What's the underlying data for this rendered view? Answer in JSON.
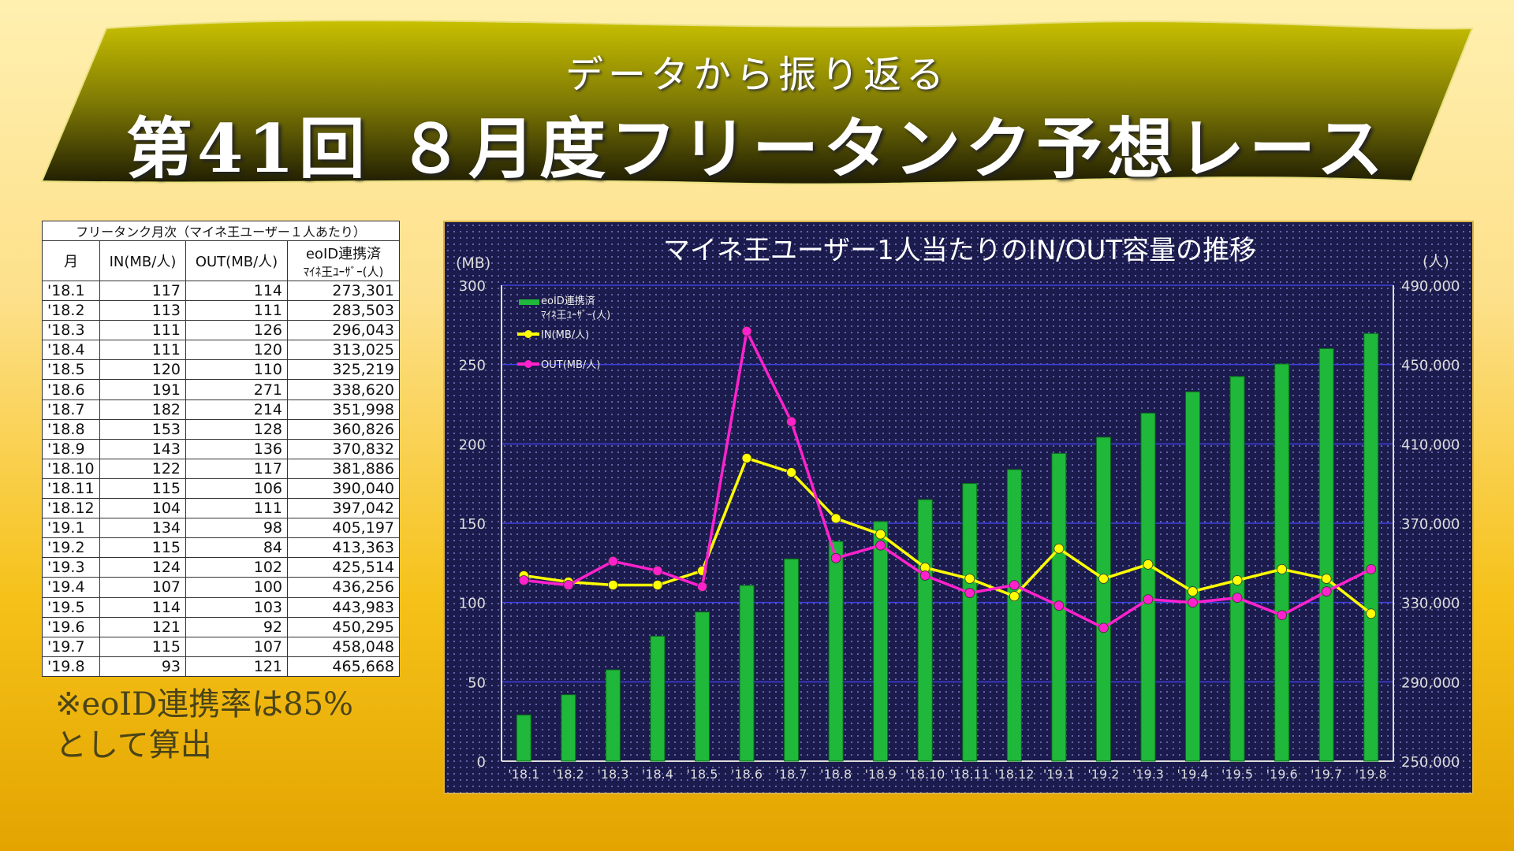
{
  "banner": {
    "subtitle": "データから振り返る",
    "title": "第41回 ８月度フリータンク予想レース"
  },
  "table": {
    "caption": "フリータンク月次（マイネ王ユーザー１人あたり）",
    "headers": [
      "月",
      "IN(MB/人)",
      "OUT(MB/人)",
      "eoID連携済",
      "ﾏｲﾈ王ﾕｰｻﾞｰ(人)"
    ],
    "rows": [
      [
        "'18.1",
        "117",
        "114",
        "273,301"
      ],
      [
        "'18.2",
        "113",
        "111",
        "283,503"
      ],
      [
        "'18.3",
        "111",
        "126",
        "296,043"
      ],
      [
        "'18.4",
        "111",
        "120",
        "313,025"
      ],
      [
        "'18.5",
        "120",
        "110",
        "325,219"
      ],
      [
        "'18.6",
        "191",
        "271",
        "338,620"
      ],
      [
        "'18.7",
        "182",
        "214",
        "351,998"
      ],
      [
        "'18.8",
        "153",
        "128",
        "360,826"
      ],
      [
        "'18.9",
        "143",
        "136",
        "370,832"
      ],
      [
        "'18.10",
        "122",
        "117",
        "381,886"
      ],
      [
        "'18.11",
        "115",
        "106",
        "390,040"
      ],
      [
        "'18.12",
        "104",
        "111",
        "397,042"
      ],
      [
        "'19.1",
        "134",
        "98",
        "405,197"
      ],
      [
        "'19.2",
        "115",
        "84",
        "413,363"
      ],
      [
        "'19.3",
        "124",
        "102",
        "425,514"
      ],
      [
        "'19.4",
        "107",
        "100",
        "436,256"
      ],
      [
        "'19.5",
        "114",
        "103",
        "443,983"
      ],
      [
        "'19.6",
        "121",
        "92",
        "450,295"
      ],
      [
        "'19.7",
        "115",
        "107",
        "458,048"
      ],
      [
        "'19.8",
        "93",
        "121",
        "465,668"
      ]
    ]
  },
  "note": {
    "line1": "※eoID連携率は85%",
    "line2": "として算出"
  },
  "chart_data": {
    "type": "bar+line",
    "title": "マイネ王ユーザー1人当たりのIN/OUT容量の推移",
    "ylabel_left": "(MB)",
    "ylabel_right": "(人)",
    "ylim_left": [
      0,
      300
    ],
    "yticks_left": [
      "0",
      "50",
      "100",
      "150",
      "200",
      "250",
      "300"
    ],
    "ylim_right": [
      250000,
      490000
    ],
    "yticks_right": [
      "250,000",
      "290,000",
      "330,000",
      "370,000",
      "410,000",
      "450,000",
      "490,000"
    ],
    "categories": [
      "'18.1",
      "'18.2",
      "'18.3",
      "'18.4",
      "'18.5",
      "'18.6",
      "'18.7",
      "'18.8",
      "'18.9",
      "'18.10",
      "'18.11",
      "'18.12",
      "'19.1",
      "'19.2",
      "'19.3",
      "'19.4",
      "'19.5",
      "'19.6",
      "'19.7",
      "'19.8"
    ],
    "legend": [
      "eoID連携済",
      "ﾏｲﾈ王ﾕｰｻﾞｰ(人)",
      "IN(MB/人)",
      "OUT(MB/人)"
    ],
    "series": [
      {
        "name": "eoID連携済ﾏｲﾈ王ﾕｰｻﾞｰ(人)",
        "axis": "right",
        "kind": "bar",
        "color": "#1fb83a",
        "values": [
          273301,
          283503,
          296043,
          313025,
          325219,
          338620,
          351998,
          360826,
          370832,
          381886,
          390040,
          397042,
          405197,
          413363,
          425514,
          436256,
          443983,
          450295,
          458048,
          465668
        ]
      },
      {
        "name": "IN(MB/人)",
        "axis": "left",
        "kind": "line",
        "color": "#ffff00",
        "values": [
          117,
          113,
          111,
          111,
          120,
          191,
          182,
          153,
          143,
          122,
          115,
          104,
          134,
          115,
          124,
          107,
          114,
          121,
          115,
          93
        ]
      },
      {
        "name": "OUT(MB/人)",
        "axis": "left",
        "kind": "line",
        "color": "#ff22cc",
        "values": [
          114,
          111,
          126,
          120,
          110,
          271,
          214,
          128,
          136,
          117,
          106,
          111,
          98,
          84,
          102,
          100,
          103,
          92,
          107,
          121
        ]
      }
    ],
    "grid": true,
    "legend_position": "top-left"
  }
}
